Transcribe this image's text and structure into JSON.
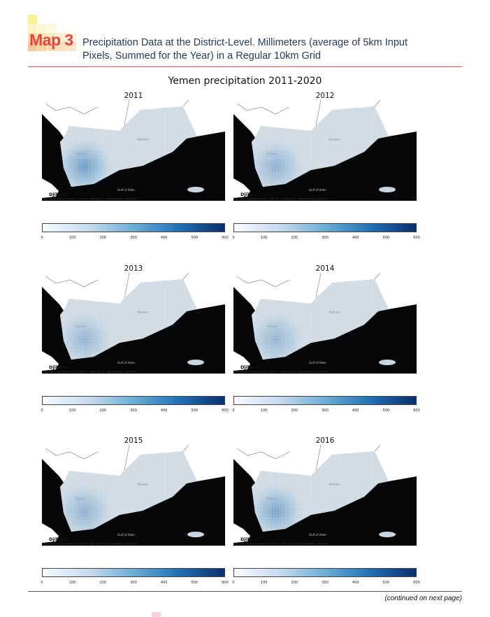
{
  "header": {
    "map_label": "Map 3",
    "title": "Precipitation Data at the District-Level. Millimeters (average of 5km Input Pixels, Summed for the Year) in a Regular 10km Grid",
    "accent_color": "#ee3e3e"
  },
  "figure": {
    "title": "Yemen precipitation 2011-2020",
    "map_labels": {
      "country": "Yemen",
      "city": "Sanaa",
      "gulf": "Gulf of Aden",
      "djibouti": "Djibouti"
    },
    "attribution": "Map tiles by Stamen Design, CC BY 3.0 — Map data (C) OpenStreetMap contributors",
    "colorbar": {
      "colormap": "Blues",
      "min": 0,
      "max": 600,
      "ticks": [
        "0",
        "100",
        "200",
        "300",
        "400",
        "500",
        "600"
      ]
    },
    "panels": [
      {
        "year": "2011",
        "intensity": 0.75
      },
      {
        "year": "2012",
        "intensity": 0.5
      },
      {
        "year": "2013",
        "intensity": 0.45
      },
      {
        "year": "2014",
        "intensity": 0.45
      },
      {
        "year": "2015",
        "intensity": 0.5
      },
      {
        "year": "2016",
        "intensity": 0.65
      }
    ]
  },
  "footer": {
    "continued": "(continued on next page)"
  }
}
